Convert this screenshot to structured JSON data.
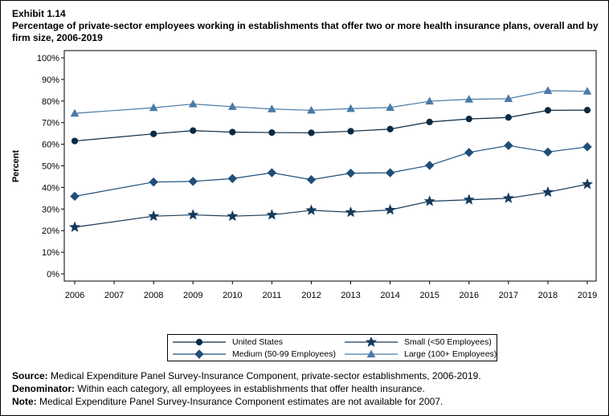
{
  "exhibit": "Exhibit 1.14",
  "title": "Percentage of private-sector employees working in establishments that offer two or more health insurance plans, overall and by firm size, 2006-2019",
  "notes": {
    "source_label": "Source:",
    "source_text": "Medical Expenditure Panel Survey-Insurance Component, private-sector establishments, 2006-2019.",
    "denominator_label": "Denominator:",
    "denominator_text": "Within each category, all employees in establishments that offer health insurance.",
    "note_label": "Note:",
    "note_text": "Medical Expenditure Panel Survey-Insurance Component estimates are not available for 2007."
  },
  "colors": {
    "us": "#0a2a43",
    "small": "#163a5c",
    "medium": "#1f4e79",
    "large": "#4a7aa8"
  },
  "chart_data": {
    "type": "line",
    "title": "Percentage of private-sector employees working in establishments that offer two or more health insurance plans, overall and by firm size, 2006-2019",
    "xlabel": "",
    "ylabel": "Percent",
    "x": [
      2006,
      2007,
      2008,
      2009,
      2010,
      2011,
      2012,
      2013,
      2014,
      2015,
      2016,
      2017,
      2018,
      2019
    ],
    "x_tick_labels": [
      "2006",
      "2007",
      "2008",
      "2009",
      "2010",
      "2011",
      "2012",
      "2013",
      "2014",
      "2015",
      "2016",
      "2017",
      "2018",
      "2019"
    ],
    "y_tick_labels": [
      "0%",
      "10%",
      "20%",
      "30%",
      "40%",
      "50%",
      "60%",
      "70%",
      "80%",
      "90%",
      "100%"
    ],
    "ylim": [
      0,
      100
    ],
    "grid": false,
    "legend_position": "bottom",
    "series": [
      {
        "name": "United States",
        "marker": "circle",
        "color_key": "us",
        "values": [
          61.5,
          null,
          64.8,
          66.3,
          65.6,
          65.4,
          65.3,
          66.0,
          67.0,
          70.3,
          71.7,
          72.4,
          75.7,
          75.8
        ]
      },
      {
        "name": "Small (<50 Employees)",
        "marker": "star",
        "color_key": "small",
        "values": [
          21.6,
          null,
          26.7,
          27.3,
          26.7,
          27.3,
          29.4,
          28.5,
          29.6,
          33.6,
          34.3,
          35.0,
          37.8,
          41.5
        ]
      },
      {
        "name": "Medium (50-99 Employees)",
        "marker": "diamond",
        "color_key": "medium",
        "values": [
          35.9,
          null,
          42.5,
          42.8,
          44.1,
          46.8,
          43.6,
          46.6,
          46.8,
          50.2,
          56.2,
          59.4,
          56.4,
          58.8
        ]
      },
      {
        "name": "Large (100+ Employees)",
        "marker": "triangle",
        "color_key": "large",
        "values": [
          74.3,
          null,
          76.9,
          78.6,
          77.4,
          76.3,
          75.7,
          76.5,
          77.0,
          79.9,
          80.8,
          81.1,
          84.8,
          84.5
        ]
      }
    ]
  }
}
